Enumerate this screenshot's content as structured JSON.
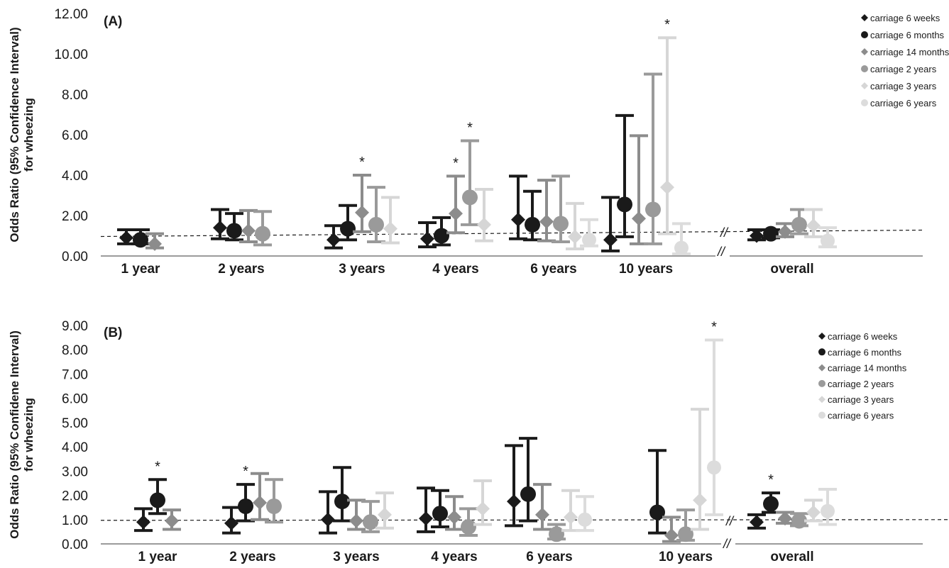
{
  "figure": {
    "panels": [
      "(A)",
      "(B)"
    ],
    "break_mark": "//",
    "significance_marker": "*"
  },
  "colors": {
    "carriage 6 weeks": "#1a1a1a",
    "carriage 6 months": "#1a1a1a",
    "carriage 14 months": "#8c8c8c",
    "carriage 2 years": "#9a9a9a",
    "carriage 3 years": "#d6d6d6",
    "carriage 6 years": "#dcdcdc"
  },
  "markers": {
    "carriage 6 weeks": "diamond",
    "carriage 6 months": "circle",
    "carriage 14 months": "diamond",
    "carriage 2 years": "circle",
    "carriage 3 years": "diamond",
    "carriage 6 years": "circle"
  },
  "chart_data": [
    {
      "type": "scatter",
      "panel_label": "(A)",
      "ylabel": "Odds Ratio (95% Confidence Interval) for wheezing",
      "ylim": [
        0,
        12
      ],
      "yticks": [
        "0.00",
        "2.00",
        "4.00",
        "6.00",
        "8.00",
        "10.00",
        "12.00"
      ],
      "categories": [
        "1 year",
        "2 years",
        "3 years",
        "4 years",
        "6 years",
        "10 years",
        "overall"
      ],
      "reference_line": 1.0,
      "legend_position": "top-right",
      "legend": [
        "carriage 6 weeks",
        "carriage 6 months",
        "carriage 14 months",
        "carriage 2 years",
        "carriage 3 years",
        "carriage 6 years"
      ],
      "series": [
        {
          "name": "carriage 6 weeks",
          "values": [
            0.9,
            1.4,
            0.8,
            0.85,
            1.8,
            0.8,
            1.0
          ],
          "lower": [
            0.6,
            0.85,
            0.4,
            0.45,
            0.85,
            0.25,
            0.8
          ],
          "upper": [
            1.3,
            2.3,
            1.5,
            1.65,
            3.95,
            2.9,
            1.3
          ],
          "significant": [
            false,
            false,
            false,
            false,
            false,
            false,
            false
          ]
        },
        {
          "name": "carriage 6 months",
          "values": [
            0.8,
            1.25,
            1.35,
            1.0,
            1.55,
            2.55,
            1.1
          ],
          "lower": [
            0.6,
            0.8,
            0.8,
            0.55,
            0.8,
            0.95,
            0.9
          ],
          "upper": [
            1.3,
            2.1,
            2.5,
            1.9,
            3.2,
            6.95,
            1.3
          ],
          "significant": [
            false,
            false,
            false,
            false,
            false,
            false,
            false
          ]
        },
        {
          "name": "carriage 14 months",
          "values": [
            0.6,
            1.25,
            2.15,
            2.1,
            1.7,
            1.85,
            1.2
          ],
          "lower": [
            0.4,
            0.7,
            1.2,
            1.15,
            0.75,
            0.6,
            0.95
          ],
          "upper": [
            1.1,
            2.25,
            4.0,
            3.95,
            3.75,
            5.95,
            1.6
          ],
          "significant": [
            false,
            false,
            true,
            true,
            false,
            false,
            false
          ]
        },
        {
          "name": "carriage 2 years",
          "values": [
            null,
            1.1,
            1.55,
            2.9,
            1.6,
            2.3,
            1.55
          ],
          "lower": [
            null,
            0.55,
            0.7,
            1.55,
            0.7,
            0.6,
            1.1
          ],
          "upper": [
            null,
            2.2,
            3.4,
            5.7,
            3.95,
            9.0,
            2.3
          ],
          "significant": [
            false,
            false,
            false,
            true,
            false,
            false,
            false
          ]
        },
        {
          "name": "carriage 3 years",
          "values": [
            null,
            null,
            1.35,
            1.55,
            0.95,
            3.4,
            1.5
          ],
          "lower": [
            null,
            null,
            0.65,
            0.75,
            0.35,
            1.1,
            0.95
          ],
          "upper": [
            null,
            null,
            2.9,
            3.3,
            2.6,
            10.8,
            2.3
          ],
          "significant": [
            false,
            false,
            false,
            false,
            false,
            true,
            false
          ]
        },
        {
          "name": "carriage 6 years",
          "values": [
            null,
            null,
            null,
            null,
            0.8,
            0.4,
            0.75
          ],
          "lower": [
            null,
            null,
            null,
            null,
            0.5,
            0.1,
            0.45
          ],
          "upper": [
            null,
            null,
            null,
            null,
            1.8,
            1.6,
            1.4
          ],
          "significant": [
            false,
            false,
            false,
            false,
            false,
            false,
            false
          ]
        }
      ]
    },
    {
      "type": "scatter",
      "panel_label": "(B)",
      "ylabel": "Odds Ratio (95% Confidene Interval) for wheezing",
      "ylim": [
        0,
        9
      ],
      "yticks": [
        "0.00",
        "1.00",
        "2.00",
        "3.00",
        "4.00",
        "5.00",
        "6.00",
        "7.00",
        "8.00",
        "9.00"
      ],
      "categories": [
        "1 year",
        "2 years",
        "3 years",
        "4 years",
        "6 years",
        "10 years",
        "overall"
      ],
      "reference_line": 1.0,
      "legend_position": "top-right",
      "legend": [
        "carriage 6 weeks",
        "carriage 6 months",
        "carriage 14 months",
        "carriage 2 years",
        "carriage 3 years",
        "carriage 6 years"
      ],
      "series": [
        {
          "name": "carriage 6 weeks",
          "values": [
            0.9,
            0.85,
            1.0,
            1.05,
            1.75,
            null,
            0.9
          ],
          "lower": [
            0.55,
            0.45,
            0.45,
            0.5,
            0.75,
            null,
            0.65
          ],
          "upper": [
            1.45,
            1.5,
            2.15,
            2.3,
            4.05,
            null,
            1.2
          ],
          "significant": [
            false,
            false,
            false,
            false,
            false,
            false,
            false
          ]
        },
        {
          "name": "carriage 6 months",
          "values": [
            1.8,
            1.55,
            1.75,
            1.25,
            2.05,
            1.3,
            1.65
          ],
          "lower": [
            1.25,
            0.95,
            0.95,
            0.7,
            0.95,
            0.45,
            1.3
          ],
          "upper": [
            2.65,
            2.45,
            3.15,
            2.2,
            4.35,
            3.85,
            2.1
          ],
          "significant": [
            true,
            true,
            false,
            false,
            false,
            false,
            true
          ]
        },
        {
          "name": "carriage 14 months",
          "values": [
            0.95,
            1.7,
            0.95,
            1.1,
            1.2,
            0.35,
            1.05
          ],
          "lower": [
            0.6,
            1.0,
            0.6,
            0.6,
            0.6,
            0.1,
            0.85
          ],
          "upper": [
            1.4,
            2.9,
            1.8,
            1.95,
            2.45,
            1.1,
            1.3
          ],
          "significant": [
            false,
            false,
            false,
            false,
            false,
            false,
            false
          ]
        },
        {
          "name": "carriage 2 years",
          "values": [
            null,
            1.55,
            0.9,
            0.7,
            0.4,
            0.4,
            0.95
          ],
          "lower": [
            null,
            0.9,
            0.5,
            0.35,
            0.2,
            0.15,
            0.75
          ],
          "upper": [
            null,
            2.65,
            1.75,
            1.45,
            0.8,
            1.4,
            1.25
          ],
          "significant": [
            false,
            false,
            false,
            false,
            false,
            false,
            false
          ]
        },
        {
          "name": "carriage 3 years",
          "values": [
            null,
            null,
            1.2,
            1.45,
            1.1,
            1.8,
            1.3
          ],
          "lower": [
            null,
            null,
            0.65,
            0.8,
            0.55,
            0.6,
            0.95
          ],
          "upper": [
            null,
            null,
            2.1,
            2.6,
            2.2,
            5.55,
            1.8
          ],
          "significant": [
            false,
            false,
            false,
            false,
            false,
            false,
            false
          ]
        },
        {
          "name": "carriage 6 years",
          "values": [
            null,
            null,
            null,
            null,
            1.0,
            3.15,
            1.35
          ],
          "lower": [
            null,
            null,
            null,
            null,
            0.55,
            1.2,
            0.8
          ],
          "upper": [
            null,
            null,
            null,
            null,
            1.95,
            8.4,
            2.25
          ],
          "significant": [
            false,
            false,
            false,
            false,
            false,
            true,
            false
          ]
        }
      ]
    }
  ]
}
